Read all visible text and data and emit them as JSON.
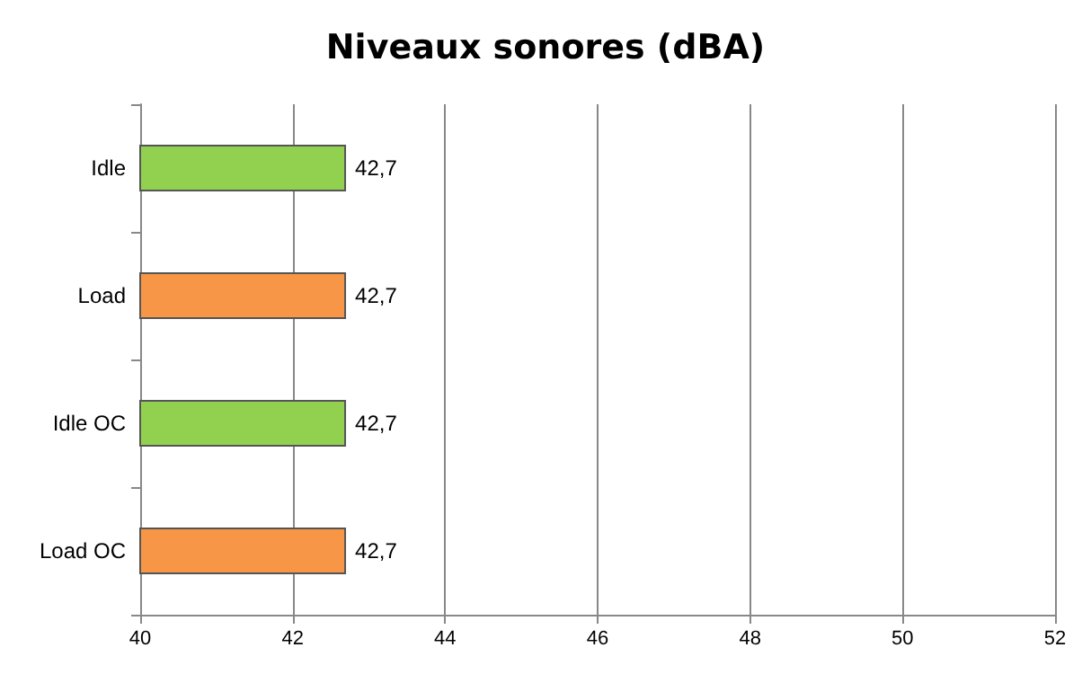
{
  "chart_data": {
    "type": "bar",
    "orientation": "horizontal",
    "title": "Niveaux sonores (dBA)",
    "categories": [
      "Idle",
      "Load",
      "Idle OC",
      "Load OC"
    ],
    "values": [
      42.7,
      42.7,
      42.7,
      42.7
    ],
    "colors": [
      "#92d050",
      "#f79646",
      "#92d050",
      "#f79646"
    ],
    "value_labels": [
      "42,7",
      "42,7",
      "42,7",
      "42,7"
    ],
    "xlim": [
      40,
      52
    ],
    "xticks": [
      40,
      42,
      44,
      46,
      48,
      50,
      52
    ],
    "grid": "x"
  }
}
